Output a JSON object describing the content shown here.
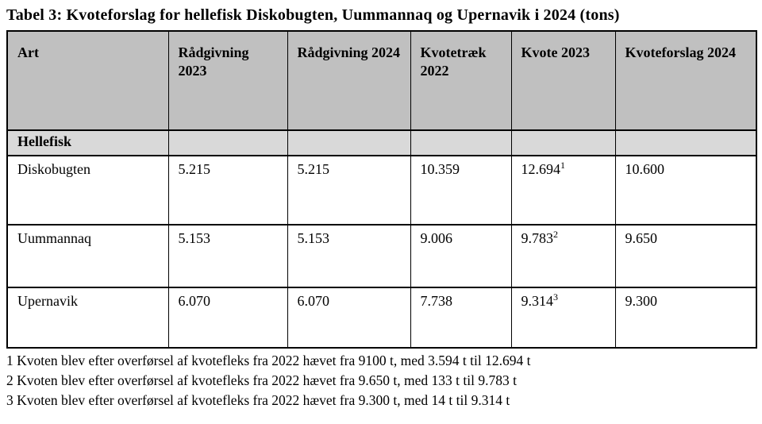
{
  "page": {
    "title": "Tabel 3: Kvoteforslag for hellefisk Diskobugten, Uummannaq og Upernavik i 2024 (tons)"
  },
  "table": {
    "columns": [
      "Art",
      "Rådgivning 2023",
      "Rådgivning 2024",
      "Kvotetræk 2022",
      "Kvote 2023",
      "Kvoteforslag 2024"
    ],
    "section_header": "Hellefisk",
    "rows": [
      {
        "art": "Diskobugten",
        "radgivning_2023": "5.215",
        "radgivning_2024": "5.215",
        "kvotetraek_2022": "10.359",
        "kvote_2023": "12.694",
        "kvote_2023_footnote": "1",
        "kvoteforslag_2024": "10.600"
      },
      {
        "art": "Uummannaq",
        "radgivning_2023": "5.153",
        "radgivning_2024": "5.153",
        "kvotetraek_2022": "9.006",
        "kvote_2023": "9.783",
        "kvote_2023_footnote": "2",
        "kvoteforslag_2024": "9.650"
      },
      {
        "art": "Upernavik",
        "radgivning_2023": "6.070",
        "radgivning_2024": "6.070",
        "kvotetraek_2022": "7.738",
        "kvote_2023": "9.314",
        "kvote_2023_footnote": "3",
        "kvoteforslag_2024": "9.300"
      }
    ]
  },
  "footnotes": [
    "1 Kvoten blev efter overførsel af kvotefleks fra 2022 hævet fra 9100 t, med 3.594 t til 12.694 t",
    "2 Kvoten blev efter overførsel af kvotefleks fra 2022 hævet fra 9.650 t, med 133 t til 9.783 t",
    "3 Kvoten blev efter overførsel af kvotefleks fra 2022 hævet fra 9.300 t, med 14 t til 9.314 t"
  ],
  "colors": {
    "header_bg": "#c0c0c0",
    "section_bg": "#d9d9d9",
    "border": "#000000",
    "text": "#000000",
    "page_bg": "#ffffff"
  }
}
